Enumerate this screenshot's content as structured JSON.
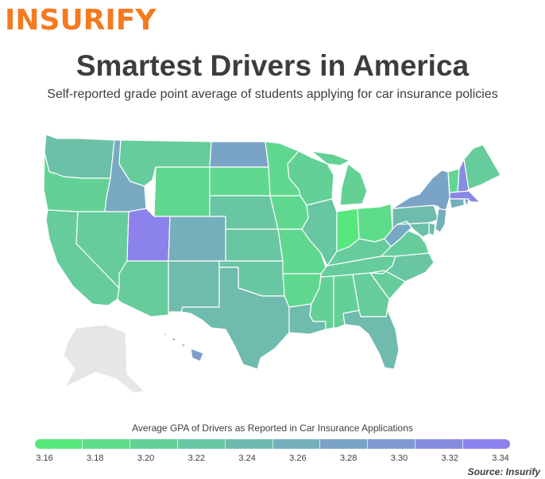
{
  "header": {
    "logo": "INSURIFY",
    "title": "Smartest Drivers in America",
    "subtitle": "Self-reported grade point average of students applying for car insurance policies"
  },
  "legend": {
    "title": "Average GPA of Drivers as Reported in Car Insurance Applications",
    "ticks": [
      "3.16",
      "3.18",
      "3.20",
      "3.22",
      "3.24",
      "3.26",
      "3.28",
      "3.30",
      "3.32",
      "3.34"
    ],
    "min": 3.16,
    "max": 3.34,
    "color_low": "#57e87d",
    "color_high": "#8c82ec"
  },
  "source": "Source: Insurify",
  "colors": {
    "no_data": "#e6e6e6",
    "border": "#ffffff",
    "logo": "#f47a20",
    "text": "#3d3d3d"
  },
  "states": {
    "WA": 3.23,
    "OR": 3.2,
    "CA": 3.21,
    "NV": 3.21,
    "ID": 3.27,
    "MT": 3.21,
    "WY": 3.19,
    "UT": 3.34,
    "AZ": 3.21,
    "CO": 3.26,
    "NM": 3.24,
    "ND": 3.28,
    "SD": 3.19,
    "NE": 3.22,
    "KS": 3.22,
    "OK": 3.22,
    "TX": 3.24,
    "MN": 3.19,
    "IA": 3.19,
    "MO": 3.19,
    "AR": 3.19,
    "LA": 3.24,
    "WI": 3.2,
    "IL": 3.22,
    "MI": 3.2,
    "IN": 3.16,
    "OH": 3.18,
    "KY": 3.21,
    "TN": 3.21,
    "MS": 3.2,
    "AL": 3.2,
    "GA": 3.21,
    "FL": 3.24,
    "SC": 3.21,
    "NC": 3.22,
    "VA": 3.21,
    "WV": 3.27,
    "PA": 3.24,
    "NY": 3.28,
    "VT": 3.19,
    "NH": 3.32,
    "ME": 3.21,
    "MA": 3.33,
    "RI": 3.28,
    "CT": 3.26,
    "NJ": 3.26,
    "DE": 3.23,
    "MD": 3.23,
    "HI": 3.29,
    "AK": null
  }
}
